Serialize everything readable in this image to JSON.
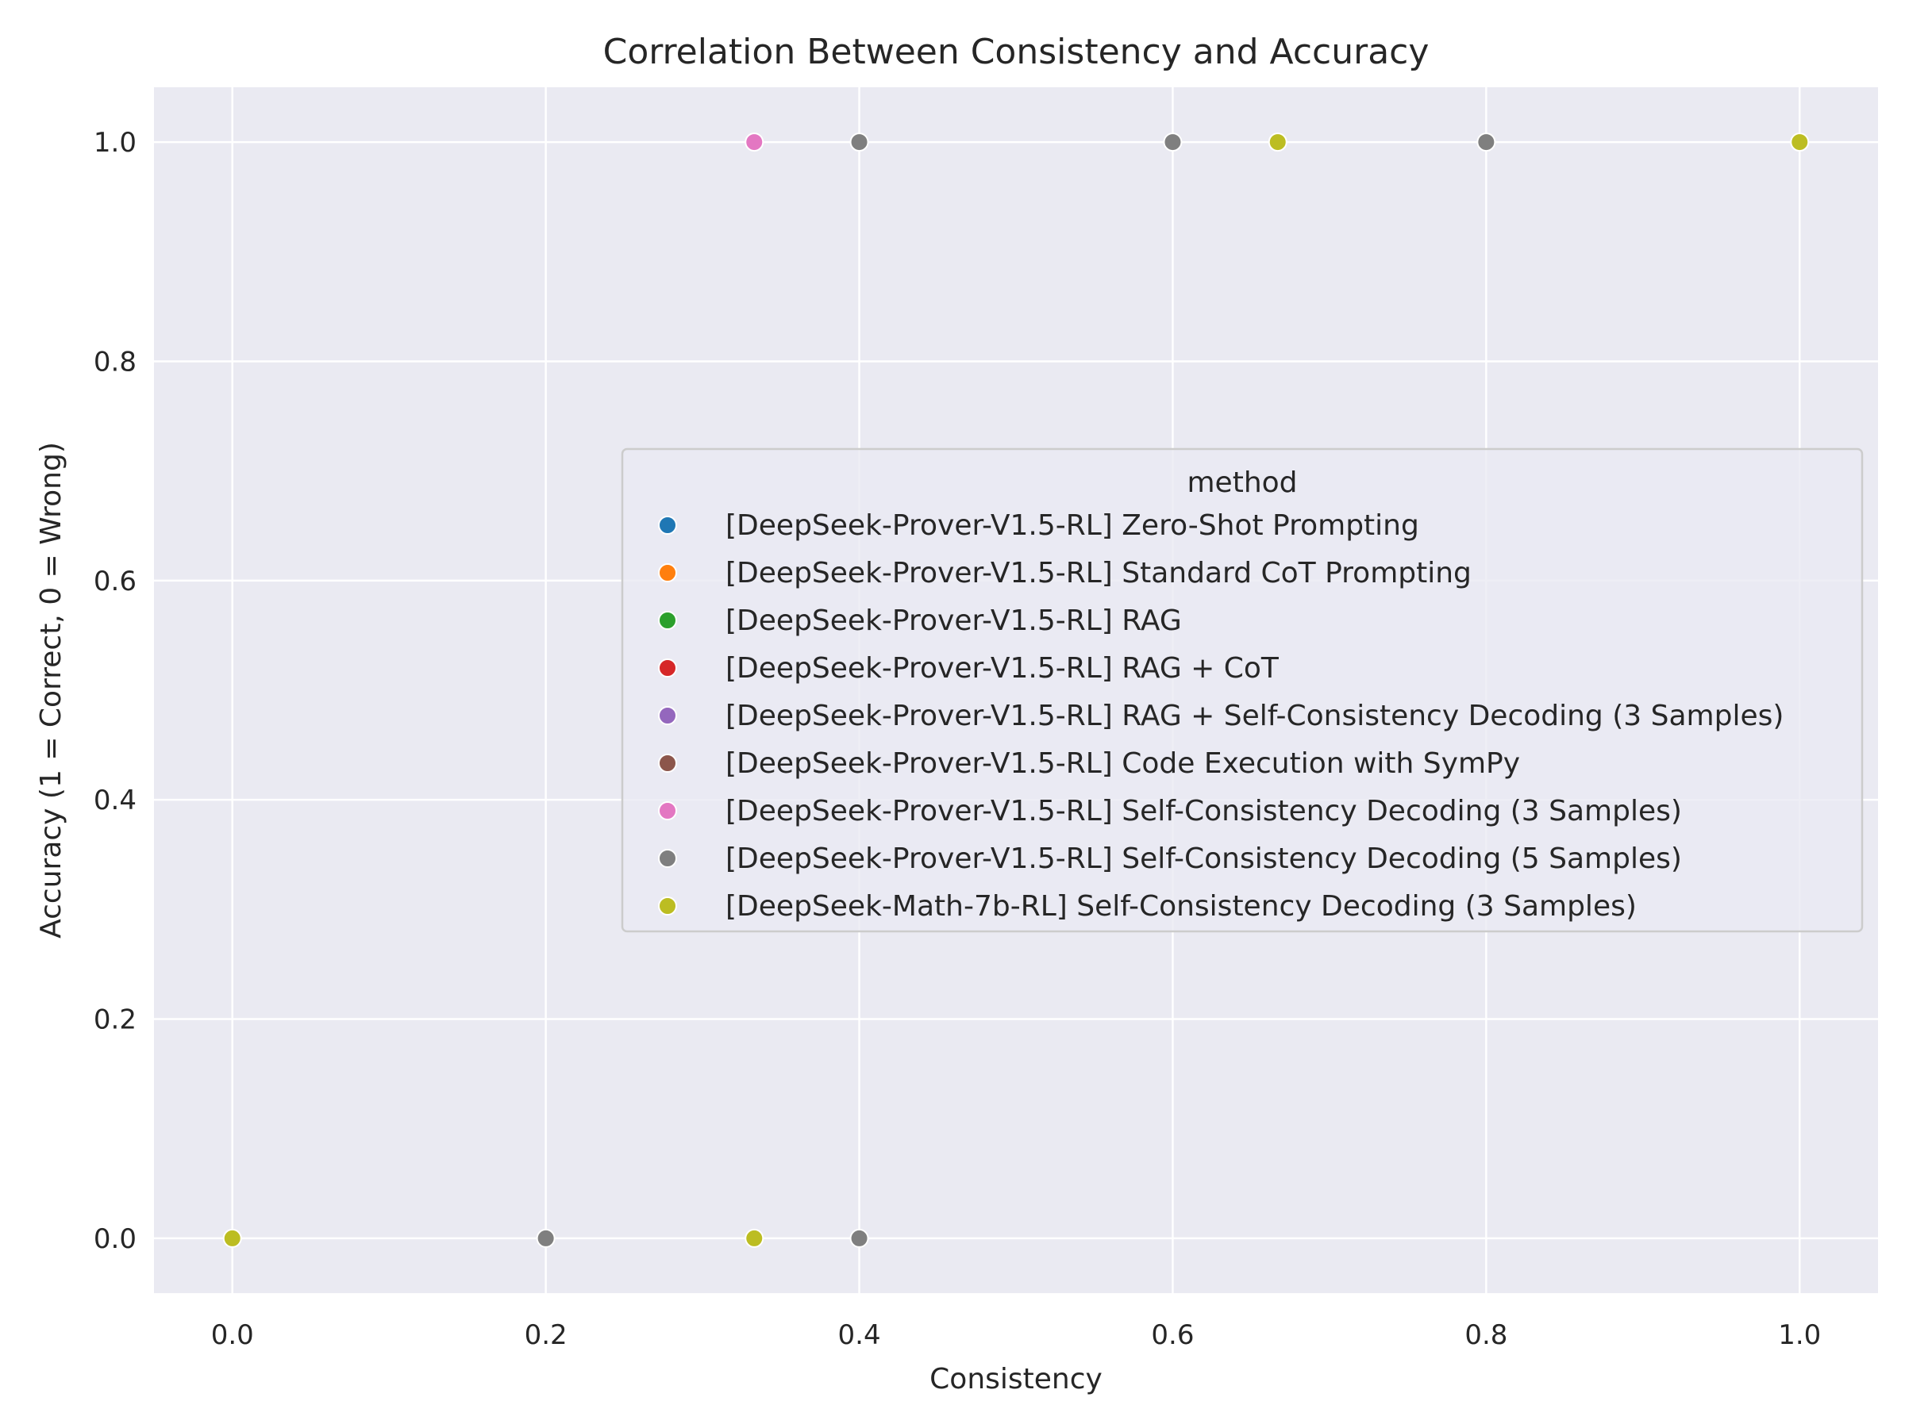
{
  "chart_data": {
    "type": "scatter",
    "title": "Correlation Between Consistency and Accuracy",
    "xlabel": "Consistency",
    "ylabel": "Accuracy (1 = Correct, 0 = Wrong)",
    "xlim": [
      -0.05,
      1.05
    ],
    "ylim": [
      -0.05,
      1.05
    ],
    "xticks": [
      0.0,
      0.2,
      0.4,
      0.6,
      0.8,
      1.0
    ],
    "xtick_labels": [
      "0.0",
      "0.2",
      "0.4",
      "0.6",
      "0.8",
      "1.0"
    ],
    "yticks": [
      0.0,
      0.2,
      0.4,
      0.6,
      0.8,
      1.0
    ],
    "ytick_labels": [
      "0.0",
      "0.2",
      "0.4",
      "0.6",
      "0.8",
      "1.0"
    ],
    "grid": true,
    "background": "#eaeaf2",
    "legend": {
      "title": "method",
      "placement": "center-right"
    },
    "series": [
      {
        "name": "[DeepSeek-Prover-V1.5-RL] Zero-Shot Prompting",
        "color": "#1f77b4",
        "points": []
      },
      {
        "name": "[DeepSeek-Prover-V1.5-RL] Standard CoT Prompting",
        "color": "#ff7f0e",
        "points": []
      },
      {
        "name": "[DeepSeek-Prover-V1.5-RL] RAG",
        "color": "#2ca02c",
        "points": []
      },
      {
        "name": "[DeepSeek-Prover-V1.5-RL] RAG + CoT",
        "color": "#d62728",
        "points": []
      },
      {
        "name": "[DeepSeek-Prover-V1.5-RL] RAG + Self-Consistency Decoding (3 Samples)",
        "color": "#9467bd",
        "points": []
      },
      {
        "name": "[DeepSeek-Prover-V1.5-RL] Code Execution with SymPy",
        "color": "#8c564b",
        "points": []
      },
      {
        "name": "[DeepSeek-Prover-V1.5-RL] Self-Consistency Decoding (3 Samples)",
        "color": "#e377c2",
        "points": [
          [
            0.333,
            1.0
          ]
        ]
      },
      {
        "name": "[DeepSeek-Prover-V1.5-RL] Self-Consistency Decoding (5 Samples)",
        "color": "#7f7f7f",
        "points": [
          [
            0.4,
            1.0
          ],
          [
            0.6,
            1.0
          ],
          [
            0.8,
            1.0
          ],
          [
            0.2,
            0.0
          ],
          [
            0.4,
            0.0
          ]
        ]
      },
      {
        "name": "[DeepSeek-Math-7b-RL] Self-Consistency Decoding (3 Samples)",
        "color": "#bcbd22",
        "points": [
          [
            0.667,
            1.0
          ],
          [
            1.0,
            1.0
          ],
          [
            0.0,
            0.0
          ],
          [
            0.333,
            0.0
          ]
        ]
      }
    ]
  }
}
